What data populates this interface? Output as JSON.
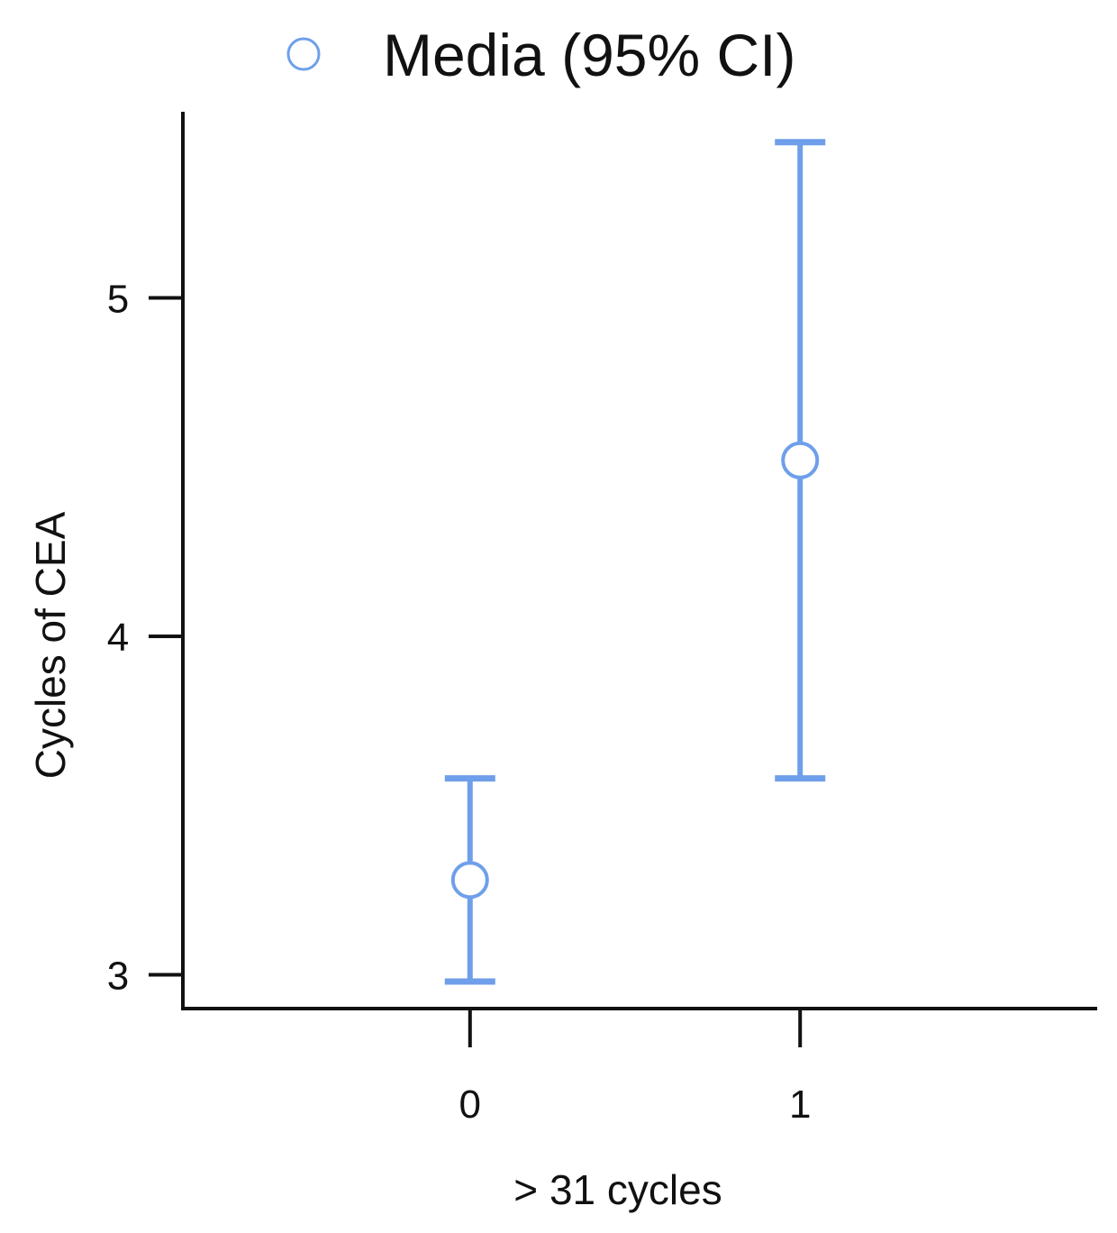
{
  "chart_data": {
    "type": "scatter",
    "title": "",
    "legend": {
      "label": "Media (95% CI)",
      "placement": "top-center",
      "marker": "hollow-circle"
    },
    "xlabel": "> 31 cycles",
    "ylabel": "Cycles of CEA",
    "x_ticks": [
      "0",
      "1"
    ],
    "y_ticks": [
      "5",
      "4",
      "3"
    ],
    "y_tick_values": [
      5,
      4,
      3
    ],
    "xlim": [
      -0.87,
      1.9
    ],
    "ylim": [
      2.9,
      5.55
    ],
    "grid": false,
    "colors": {
      "series": "#6f9fea",
      "axis": "#111111",
      "text": "#111111"
    },
    "series": [
      {
        "name": "Media (95% CI)",
        "points": [
          {
            "x": 0,
            "y": 3.28,
            "ci_low": 2.98,
            "ci_high": 3.58
          },
          {
            "x": 1,
            "y": 4.52,
            "ci_low": 3.58,
            "ci_high": 5.46
          }
        ]
      }
    ]
  }
}
